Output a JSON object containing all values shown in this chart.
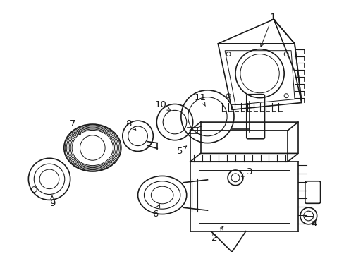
{
  "bg_color": "#ffffff",
  "line_color": "#1a1a1a",
  "label_color": "#1a1a1a",
  "figsize": [
    4.89,
    3.6
  ],
  "dpi": 100
}
